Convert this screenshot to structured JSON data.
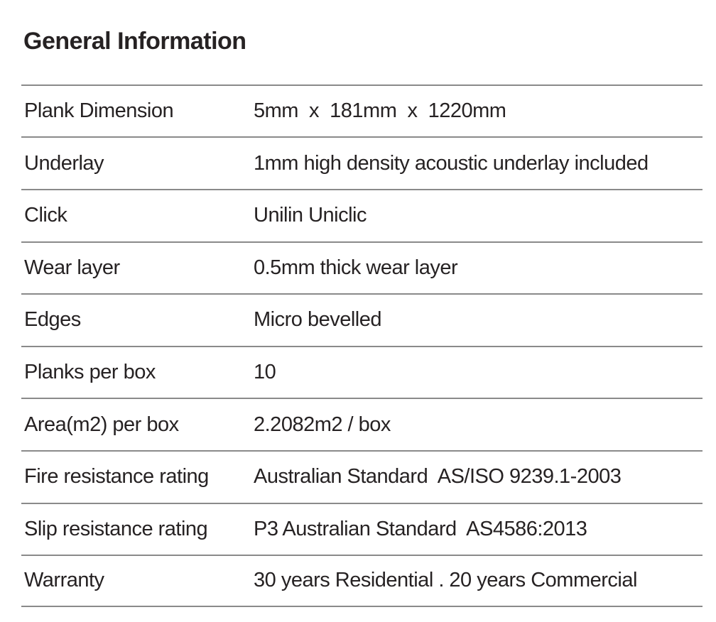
{
  "page": {
    "background_color": "#ffffff",
    "text_color": "#262223",
    "divider_color": "#8a8a8a"
  },
  "header": {
    "title": "General Information"
  },
  "table": {
    "rows": [
      {
        "label": "Plank Dimension",
        "value": "5mm  x  181mm  x  1220mm"
      },
      {
        "label": "Underlay",
        "value": "1mm high density acoustic underlay included"
      },
      {
        "label": "Click",
        "value": "Unilin Uniclic"
      },
      {
        "label": "Wear layer",
        "value": "0.5mm thick wear layer"
      },
      {
        "label": "Edges",
        "value": "Micro bevelled"
      },
      {
        "label": "Planks per box",
        "value": "10"
      },
      {
        "label": "Area(m2) per box",
        "value": "2.2082m2 / box"
      },
      {
        "label": "Fire resistance rating",
        "value": "Australian Standard  AS/ISO 9239.1-2003"
      },
      {
        "label": "Slip resistance rating",
        "value": "P3 Australian Standard  AS4586:2013"
      },
      {
        "label": "Warranty",
        "value": "30 years Residential . 20 years Commercial"
      }
    ]
  }
}
